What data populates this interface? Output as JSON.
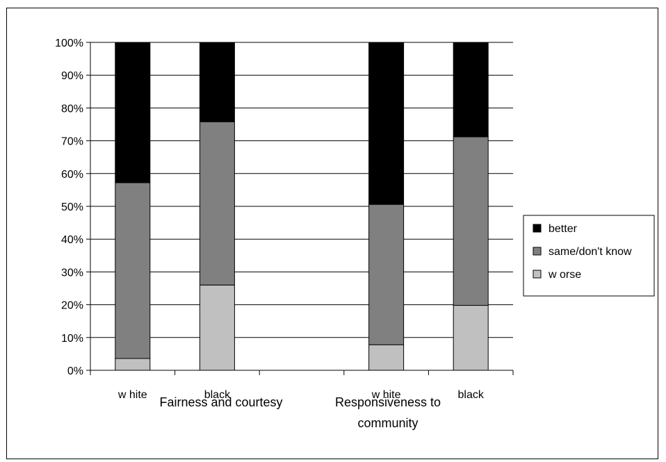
{
  "chart_data": {
    "type": "bar",
    "stacked": true,
    "percent_stacked": true,
    "categories": [
      "w hite",
      "black",
      "w hite",
      "black"
    ],
    "groups": [
      {
        "label": "Fairness and courtesy",
        "categories": [
          "w hite",
          "black"
        ]
      },
      {
        "label": "Responsiveness to community",
        "label_lines": [
          "Responsiveness to",
          "community"
        ],
        "categories": [
          "w hite",
          "black"
        ]
      }
    ],
    "series": [
      {
        "name": "w orse",
        "color": "#c0c0c0",
        "values": [
          3.6,
          26,
          7.8,
          19.8
        ]
      },
      {
        "name": "same/don't know",
        "color": "#808080",
        "values": [
          53.6,
          49.8,
          42.8,
          51.4
        ]
      },
      {
        "name": "better",
        "color": "#000000",
        "values": [
          42.8,
          24.2,
          49.4,
          28.8
        ]
      }
    ],
    "legend_order": [
      "better",
      "same/don't know",
      "w orse"
    ],
    "y_ticks": [
      "0%",
      "10%",
      "20%",
      "30%",
      "40%",
      "50%",
      "60%",
      "70%",
      "80%",
      "90%",
      "100%"
    ],
    "ylim": [
      0,
      100
    ],
    "legend_position": "right",
    "grid": true
  }
}
